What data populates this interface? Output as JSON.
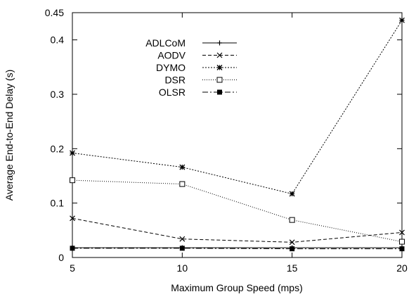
{
  "chart_data": {
    "type": "line",
    "title": "",
    "xlabel": "Maximum Group Speed (mps)",
    "ylabel": "Average End-to-End Delay (s)",
    "x": [
      5,
      10,
      15,
      20
    ],
    "xlim": [
      5,
      20
    ],
    "ylim": [
      0,
      0.45
    ],
    "xticks": [
      "5",
      "10",
      "15",
      "20"
    ],
    "yticks": [
      {
        "value": 0,
        "label": "0"
      },
      {
        "value": 0.1,
        "label": "0.1"
      },
      {
        "value": 0.2,
        "label": "0.2"
      },
      {
        "value": 0.3,
        "label": "0.3"
      },
      {
        "value": 0.4,
        "label": "0.4"
      },
      {
        "value": 0.45,
        "label": "0.45"
      }
    ],
    "grid": false,
    "legend_position": "top-left",
    "series": [
      {
        "name": "ADLCoM",
        "values": [
          0.018,
          0.018,
          0.018,
          0.018
        ],
        "marker": "plus",
        "dash": "solid"
      },
      {
        "name": "AODV",
        "values": [
          0.072,
          0.034,
          0.028,
          0.046
        ],
        "marker": "x",
        "dash": "dashed"
      },
      {
        "name": "DYMO",
        "values": [
          0.192,
          0.166,
          0.117,
          0.436
        ],
        "marker": "star",
        "dash": "dotted"
      },
      {
        "name": "DSR",
        "values": [
          0.142,
          0.135,
          0.069,
          0.029
        ],
        "marker": "square-open",
        "dash": "fine-dotted"
      },
      {
        "name": "OLSR",
        "values": [
          0.017,
          0.017,
          0.016,
          0.016
        ],
        "marker": "square-filled",
        "dash": "dash-dot"
      }
    ]
  }
}
